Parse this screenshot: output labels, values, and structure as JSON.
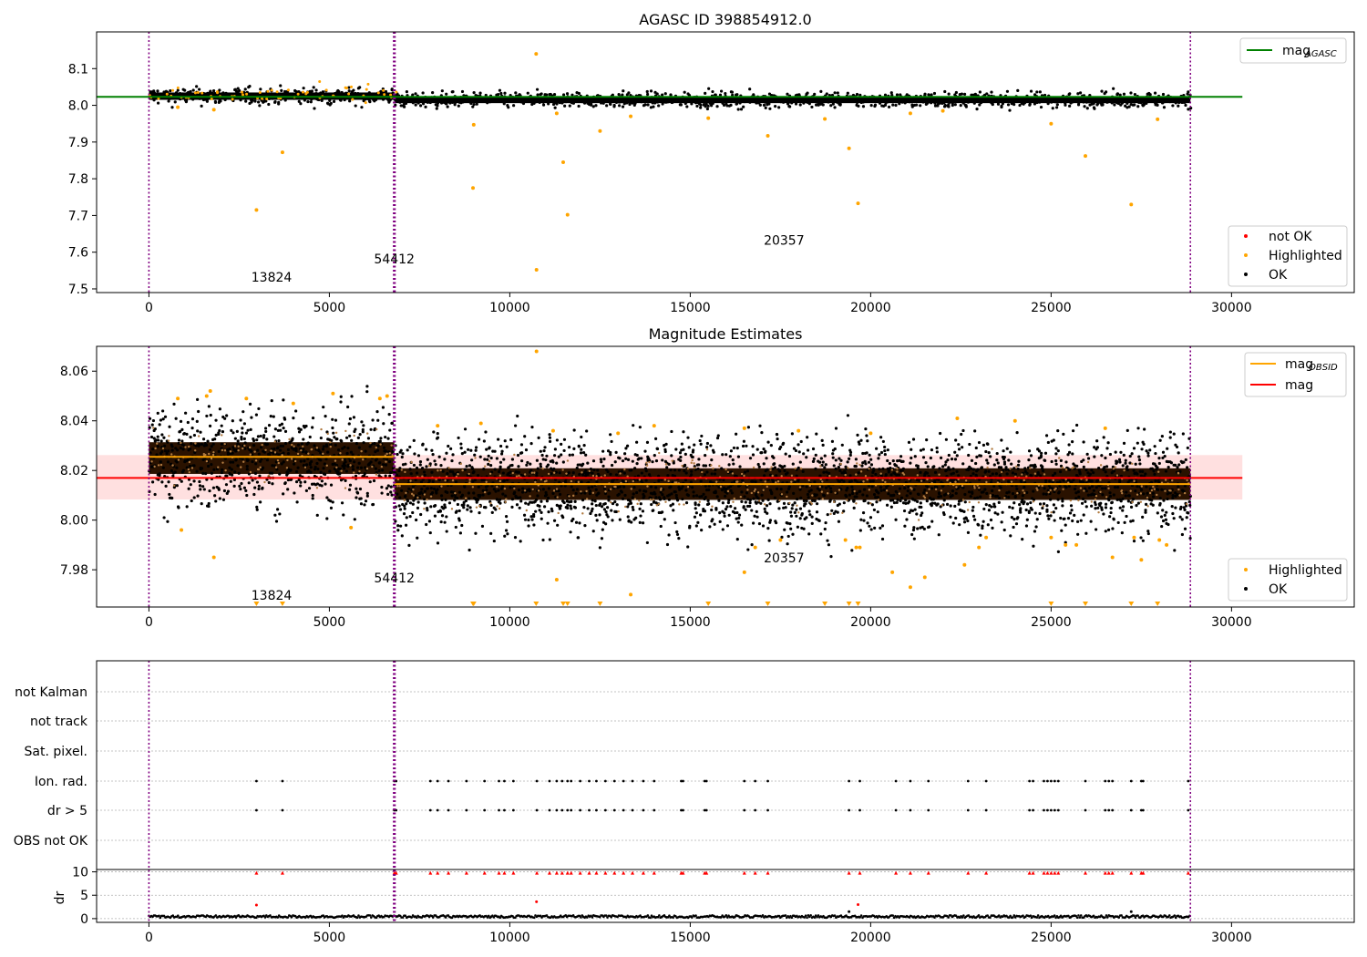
{
  "figure_title": "AGASC ID 398854912.0",
  "chart_data": [
    {
      "type": "scatter",
      "title": "AGASC ID 398854912.0",
      "xlim": [
        -1450,
        33400
      ],
      "ylim": [
        7.49,
        8.2
      ],
      "xticks": [
        0,
        5000,
        10000,
        15000,
        20000,
        25000,
        30000
      ],
      "yticks": [
        7.5,
        7.6,
        7.7,
        7.8,
        7.9,
        8.0,
        8.1
      ],
      "vlines": [
        0,
        6780,
        6800,
        6820,
        28860
      ],
      "obsid_labels": [
        {
          "text": "13824",
          "x": 3400,
          "y": 7.52
        },
        {
          "text": "54412",
          "x": 6800,
          "y": 7.57
        },
        {
          "text": "20357",
          "x": 17600,
          "y": 7.62
        }
      ],
      "bands": [
        {
          "x0": 0,
          "x1": 6800,
          "center": 8.025,
          "half": 0.01
        },
        {
          "x0": 6800,
          "x1": 28860,
          "center": 8.015,
          "half": 0.009
        }
      ],
      "mag_agasc_line": {
        "y": 8.023,
        "x0": -1450,
        "x1": 30300,
        "color": "#008000"
      },
      "highlighted": [
        [
          2980,
          7.715
        ],
        [
          3700,
          7.872
        ],
        [
          8980,
          7.775
        ],
        [
          9000,
          7.947
        ],
        [
          10730,
          8.14
        ],
        [
          10740,
          7.552
        ],
        [
          11480,
          7.845
        ],
        [
          11600,
          7.702
        ],
        [
          12500,
          7.93
        ],
        [
          13350,
          7.97
        ],
        [
          15500,
          7.965
        ],
        [
          17150,
          7.917
        ],
        [
          18730,
          7.963
        ],
        [
          19400,
          7.883
        ],
        [
          19650,
          7.733
        ],
        [
          25000,
          7.95
        ],
        [
          25950,
          7.862
        ],
        [
          27220,
          7.73
        ],
        [
          27950,
          7.962
        ],
        [
          1800,
          7.988
        ],
        [
          800,
          7.995
        ],
        [
          11300,
          7.978
        ],
        [
          21100,
          7.978
        ],
        [
          22000,
          7.985
        ]
      ],
      "legend_lines": [
        {
          "label": "mag",
          "sub": "AGASC",
          "color": "#008000"
        }
      ],
      "legend_points": [
        {
          "label": "not OK",
          "color": "#ff0000"
        },
        {
          "label": "Highlighted",
          "color": "#ffa500"
        },
        {
          "label": "OK",
          "color": "#000000"
        }
      ]
    },
    {
      "type": "scatter",
      "title": "Magnitude Estimates",
      "xlim": [
        -1450,
        33400
      ],
      "ylim": [
        7.965,
        8.07
      ],
      "xticks": [
        0,
        5000,
        10000,
        15000,
        20000,
        25000,
        30000
      ],
      "yticks": [
        7.98,
        8.0,
        8.02,
        8.04,
        8.06
      ],
      "vlines": [
        0,
        6780,
        6800,
        6820,
        28860
      ],
      "obsid_labels": [
        {
          "text": "13824",
          "x": 3400,
          "y": 7.968
        },
        {
          "text": "54412",
          "x": 6800,
          "y": 7.975
        },
        {
          "text": "20357",
          "x": 17600,
          "y": 7.983
        }
      ],
      "mag_band": {
        "y0": 8.0083,
        "y1": 8.0262,
        "x0": -1450,
        "x1": 30300
      },
      "mag_line": {
        "y": 8.017,
        "color": "#ff0000"
      },
      "mag_obsid": [
        {
          "x0": 0,
          "x1": 6800,
          "y": 8.0255
        },
        {
          "x0": 6800,
          "x1": 28860,
          "y": 8.0145
        }
      ],
      "bands": [
        {
          "x0": 0,
          "x1": 6800,
          "center": 8.025,
          "half": 0.0075
        },
        {
          "x0": 6800,
          "x1": 28860,
          "center": 8.0145,
          "half": 0.0075
        }
      ],
      "highlighted": [
        [
          1800,
          7.985
        ],
        [
          900,
          7.996
        ],
        [
          5600,
          7.997
        ],
        [
          11300,
          7.976
        ],
        [
          13350,
          7.97
        ],
        [
          16500,
          7.979
        ],
        [
          16800,
          7.989
        ],
        [
          17500,
          7.992
        ],
        [
          19300,
          7.992
        ],
        [
          19600,
          7.989
        ],
        [
          19700,
          7.989
        ],
        [
          20600,
          7.979
        ],
        [
          21100,
          7.973
        ],
        [
          21500,
          7.977
        ],
        [
          22600,
          7.982
        ],
        [
          23000,
          7.989
        ],
        [
          23200,
          7.993
        ],
        [
          25000,
          7.993
        ],
        [
          25400,
          7.99
        ],
        [
          25700,
          7.99
        ],
        [
          26700,
          7.985
        ],
        [
          27300,
          7.993
        ],
        [
          27500,
          7.984
        ],
        [
          28000,
          7.992
        ],
        [
          28200,
          7.99
        ],
        [
          10740,
          8.068
        ],
        [
          1700,
          8.052
        ],
        [
          1600,
          8.05
        ],
        [
          5100,
          8.051
        ],
        [
          6600,
          8.05
        ],
        [
          800,
          8.049
        ],
        [
          2700,
          8.049
        ],
        [
          4000,
          8.047
        ],
        [
          6400,
          8.049
        ],
        [
          22400,
          8.041
        ],
        [
          24000,
          8.04
        ],
        [
          14000,
          8.038
        ],
        [
          26500,
          8.037
        ],
        [
          8000,
          8.038
        ],
        [
          9200,
          8.039
        ],
        [
          11200,
          8.036
        ],
        [
          13000,
          8.035
        ],
        [
          16500,
          8.037
        ],
        [
          18000,
          8.036
        ],
        [
          20000,
          8.035
        ]
      ],
      "below_markers": [
        2980,
        3700,
        8980,
        9000,
        10730,
        11480,
        11600,
        12500,
        15500,
        17150,
        18730,
        19400,
        19650,
        25000,
        25950,
        27220,
        27950
      ],
      "legend_lines": [
        {
          "label": "mag",
          "sub": "OBSID",
          "color": "#ffa500"
        },
        {
          "label": "mag",
          "sub": "",
          "color": "#ff0000"
        }
      ],
      "legend_points": [
        {
          "label": "Highlighted",
          "color": "#ffa500"
        },
        {
          "label": "OK",
          "color": "#000000"
        }
      ]
    },
    {
      "type": "scatter",
      "xlim": [
        -1450,
        33400
      ],
      "xticks": [
        0,
        5000,
        10000,
        15000,
        20000,
        25000,
        30000
      ],
      "vlines": [
        0,
        6780,
        6800,
        6820,
        28860
      ],
      "flag_labels": [
        "not Kalman",
        "not track",
        "Sat. pixel.",
        "Ion. rad.",
        "dr > 5",
        "OBS not OK"
      ],
      "flag_points_x": [
        2980,
        3700,
        6800,
        6850,
        7800,
        8000,
        8300,
        8800,
        9300,
        9700,
        9850,
        10100,
        10750,
        11100,
        11300,
        11450,
        11600,
        11700,
        11950,
        12200,
        12400,
        12650,
        12900,
        13150,
        13400,
        13700,
        14000,
        14750,
        14800,
        15400,
        15450,
        16500,
        16800,
        17150,
        19400,
        19700,
        20700,
        21100,
        21600,
        22700,
        23200,
        24400,
        24500,
        24800,
        24900,
        25000,
        25100,
        25200,
        25950,
        26500,
        26600,
        26700,
        27220,
        27500,
        27550,
        28800
      ],
      "dr_ylim": [
        -0.8,
        10.5
      ],
      "dr_yticks": [
        0,
        5,
        10
      ],
      "dr_ylabel": "dr",
      "dr_red_y": 9.8,
      "dr_extra": [
        [
          2980,
          2.9
        ],
        [
          10740,
          3.6
        ],
        [
          19650,
          3.0
        ],
        [
          19400,
          1.5
        ],
        [
          27220,
          1.5
        ]
      ]
    }
  ]
}
